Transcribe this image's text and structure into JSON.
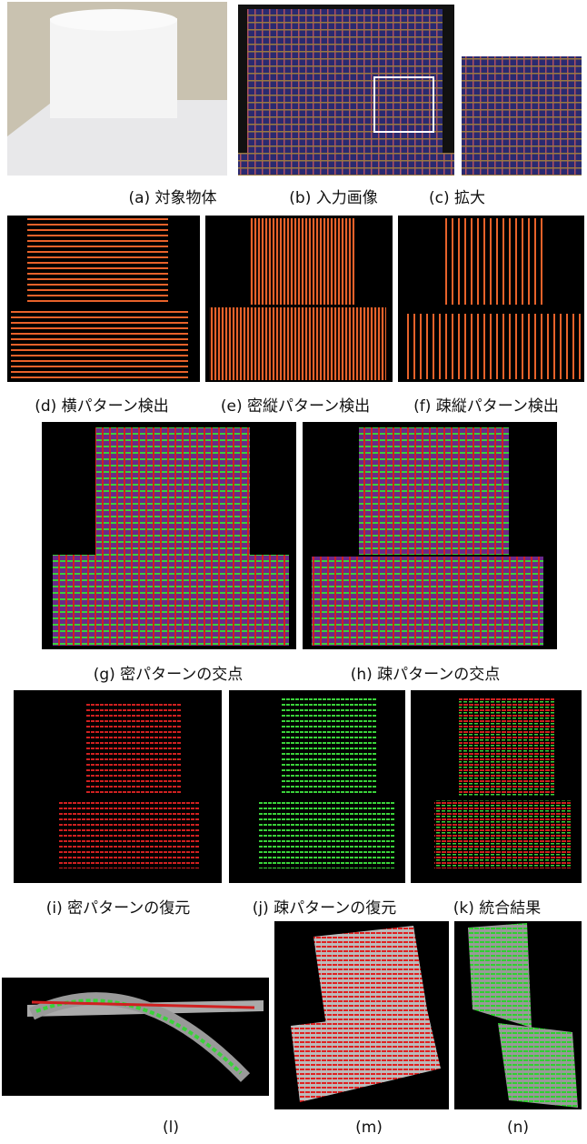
{
  "figure": {
    "captions": [
      "(a) 対象物体",
      "(b) 入力画像",
      "(c) 拡大",
      "(d) 横パターン検出",
      "(e) 密縦パターン検出",
      "(f) 疎縦パターン検出",
      "(g) 密パターンの交点",
      "(h) 疎パターンの交点",
      "(i) 密パターンの復元",
      "(j) 疎パターンの復元",
      "(k) 統合結果",
      "(l)",
      "(m)",
      "(n)"
    ]
  }
}
